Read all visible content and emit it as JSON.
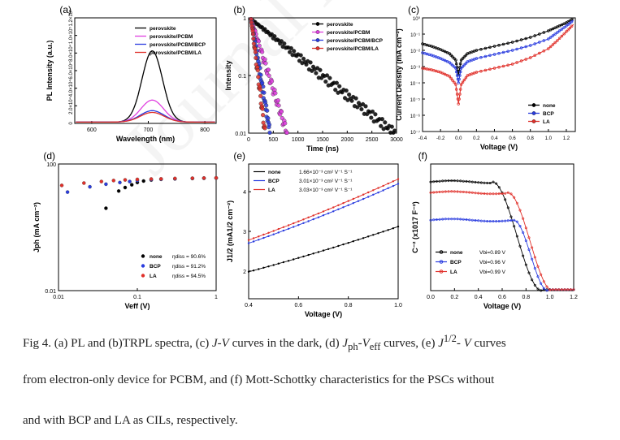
{
  "colors": {
    "none": "#000000",
    "pcbm": "#e040e0",
    "bcp": "#2a3cdf",
    "la": "#e0302a"
  },
  "watermark": "Journal Pre-proof",
  "panels": {
    "a": {
      "label": "(a)"
    },
    "b": {
      "label": "(b)"
    },
    "c": {
      "label": "(c)"
    },
    "d": {
      "label": "(d)"
    },
    "e": {
      "label": "(e)"
    },
    "f": {
      "label": "(f)"
    }
  },
  "caption": {
    "l1a": "Fig 4. (a) PL and (b)TRPL spectra, (c) ",
    "l1b": "J",
    "l1c": "-",
    "l1d": "V",
    "l1e": " curves in the dark, (d) ",
    "l1f": "J",
    "l1g": "ph",
    "l1h": "-",
    "l1i": "V",
    "l1j": "eff",
    "l1k": " curves, (e) ",
    "l1l": "J",
    "l1m": "1/2",
    "l1n": "- ",
    "l1o": "V",
    "l1p": " curves",
    "l2": "from electron-only device for PCBM, and (f) Mott-Schottky characteristics for the PSCs without",
    "l3": "and with BCP and LA as CILs, respectively."
  },
  "chart_data": [
    {
      "id": "a",
      "type": "line",
      "title": "",
      "xlabel": "Wavelength (nm)",
      "ylabel": "PL Intensity (a.u.)",
      "xlim": [
        570,
        820
      ],
      "ylim": [
        0,
        120000
      ],
      "xticks": [
        600,
        700,
        800
      ],
      "xticklabels": [
        "600",
        "700",
        "800"
      ],
      "yticks": [
        0,
        20000,
        40000,
        60000,
        80000,
        100000,
        120000
      ],
      "yticklabels": [
        "0",
        "2.0×10⁴",
        "4.0×10⁴",
        "6.0×10⁴",
        "8.0×10⁴",
        "1.0×10⁵",
        "1.2×10⁵"
      ],
      "series": [
        {
          "name": "perovskite",
          "color": "#000000",
          "peak": 707,
          "amp": 81000,
          "width": 18
        },
        {
          "name": "perovskite/PCBM",
          "color": "#e040e0",
          "peak": 707,
          "amp": 25000,
          "width": 20
        },
        {
          "name": "perovskite/PCBM/BCP",
          "color": "#2a3cdf",
          "peak": 707,
          "amp": 13000,
          "width": 21
        },
        {
          "name": "perovskite/PCBM/LA",
          "color": "#e0302a",
          "peak": 707,
          "amp": 11000,
          "width": 21
        }
      ]
    },
    {
      "id": "b",
      "type": "scatter",
      "title": "",
      "xlabel": "Time (ns)",
      "ylabel": "Intensity",
      "xlim": [
        0,
        3000
      ],
      "ylim": [
        0.01,
        1
      ],
      "yscale": "log",
      "xticks": [
        0,
        500,
        1000,
        1500,
        2000,
        2500,
        3000
      ],
      "xticklabels": [
        "0",
        "500",
        "1000",
        "1500",
        "2000",
        "2500",
        "3000"
      ],
      "yticks": [
        0.01,
        0.1,
        1
      ],
      "yticklabels": [
        "0.01",
        "0.1",
        "1"
      ],
      "series": [
        {
          "name": "perovskite",
          "color": "#000000",
          "tau": 640,
          "start": 50,
          "step": 28,
          "end": 2980
        },
        {
          "name": "perovskite/PCBM",
          "color": "#e040e0",
          "tau": 160,
          "start": 50,
          "step": 14,
          "end": 780
        },
        {
          "name": "perovskite/PCBM/BCP",
          "color": "#2a3cdf",
          "tau": 85,
          "start": 50,
          "step": 9,
          "end": 430
        },
        {
          "name": "perovskite/PCBM/LA",
          "color": "#e0302a",
          "tau": 62,
          "start": 50,
          "step": 8,
          "end": 330
        }
      ]
    },
    {
      "id": "c",
      "type": "line",
      "title": "",
      "xlabel": "Voltage (V)",
      "ylabel": "Current Density (mA cm⁻²)",
      "xlim": [
        -0.4,
        1.3
      ],
      "ylim": [
        -7,
        0
      ],
      "yscale": "log",
      "xticks": [
        -0.4,
        -0.2,
        0.0,
        0.2,
        0.4,
        0.6,
        0.8,
        1.0,
        1.2
      ],
      "xticklabels": [
        "-0.4",
        "-0.2",
        "0.0",
        "0.2",
        "0.4",
        "0.6",
        "0.8",
        "1.0",
        "1.2"
      ],
      "yticks": [
        -7,
        -6,
        -5,
        -4,
        -3,
        -2,
        -1,
        0
      ],
      "yticklabels": [
        "10⁻⁷",
        "10⁻⁶",
        "10⁻⁵",
        "10⁻⁴",
        "10⁻³",
        "10⁻²",
        "10⁻¹",
        "10⁰"
      ],
      "series": [
        {
          "name": "none",
          "color": "#000000",
          "points": [
            [
              -0.4,
              -1.6
            ],
            [
              -0.3,
              -1.75
            ],
            [
              -0.2,
              -1.95
            ],
            [
              -0.1,
              -2.2
            ],
            [
              -0.03,
              -2.6
            ],
            [
              0.0,
              -3.5
            ],
            [
              0.03,
              -2.6
            ],
            [
              0.1,
              -2.2
            ],
            [
              0.2,
              -2.0
            ],
            [
              0.4,
              -1.75
            ],
            [
              0.6,
              -1.5
            ],
            [
              0.8,
              -1.2
            ],
            [
              1.0,
              -0.8
            ],
            [
              1.1,
              -0.55
            ],
            [
              1.2,
              -0.3
            ],
            [
              1.28,
              -0.05
            ]
          ]
        },
        {
          "name": "BCP",
          "color": "#2a3cdf",
          "points": [
            [
              -0.4,
              -2.15
            ],
            [
              -0.3,
              -2.3
            ],
            [
              -0.2,
              -2.5
            ],
            [
              -0.1,
              -2.75
            ],
            [
              -0.03,
              -3.1
            ],
            [
              0.0,
              -4.0
            ],
            [
              0.03,
              -3.1
            ],
            [
              0.1,
              -2.7
            ],
            [
              0.2,
              -2.5
            ],
            [
              0.4,
              -2.25
            ],
            [
              0.6,
              -2.0
            ],
            [
              0.8,
              -1.7
            ],
            [
              1.0,
              -1.3
            ],
            [
              1.1,
              -0.9
            ],
            [
              1.2,
              -0.5
            ],
            [
              1.28,
              -0.15
            ]
          ]
        },
        {
          "name": "LA",
          "color": "#e0302a",
          "points": [
            [
              -0.4,
              -3.1
            ],
            [
              -0.3,
              -3.2
            ],
            [
              -0.2,
              -3.35
            ],
            [
              -0.1,
              -3.6
            ],
            [
              -0.03,
              -4.1
            ],
            [
              0.0,
              -5.3
            ],
            [
              0.03,
              -4.1
            ],
            [
              0.1,
              -3.55
            ],
            [
              0.2,
              -3.35
            ],
            [
              0.4,
              -3.1
            ],
            [
              0.6,
              -2.85
            ],
            [
              0.8,
              -2.45
            ],
            [
              1.0,
              -1.9
            ],
            [
              1.1,
              -1.4
            ],
            [
              1.2,
              -0.85
            ],
            [
              1.28,
              -0.4
            ]
          ]
        }
      ]
    },
    {
      "id": "d",
      "type": "scatter",
      "title": "",
      "xlabel": "Veff (V)",
      "ylabel": "Jph (mA cm⁻²)",
      "xlim": [
        0.01,
        1
      ],
      "ylim": [
        0.01,
        100
      ],
      "xscale": "log",
      "yscale": "log",
      "xticks": [
        0.01,
        0.1,
        1
      ],
      "xticklabels": [
        "0.01",
        "0.1",
        "1"
      ],
      "yticks": [
        0.01,
        100
      ],
      "yticklabels": [
        "0.01",
        "100"
      ],
      "annotations": [
        "ηdiss = 90.6%",
        "ηdiss = 91.2%",
        "ηdiss = 94.5%"
      ],
      "series": [
        {
          "name": "none",
          "color": "#000000",
          "points": [
            [
              0.04,
              4.0
            ],
            [
              0.058,
              14
            ],
            [
              0.07,
              18
            ],
            [
              0.085,
              22
            ],
            [
              0.1,
              26
            ],
            [
              0.12,
              29
            ],
            [
              0.15,
              31
            ],
            [
              0.2,
              33
            ],
            [
              0.3,
              34
            ],
            [
              0.5,
              35
            ],
            [
              0.7,
              35.5
            ],
            [
              1.0,
              36
            ]
          ]
        },
        {
          "name": "BCP",
          "color": "#2a3cdf",
          "points": [
            [
              0.013,
              13
            ],
            [
              0.025,
              19
            ],
            [
              0.04,
              23
            ],
            [
              0.06,
              26
            ],
            [
              0.08,
              28
            ],
            [
              0.1,
              30
            ],
            [
              0.15,
              32
            ],
            [
              0.2,
              33
            ],
            [
              0.3,
              34
            ],
            [
              0.5,
              35
            ],
            [
              0.7,
              35.5
            ],
            [
              1.0,
              36
            ]
          ]
        },
        {
          "name": "LA",
          "color": "#e0302a",
          "points": [
            [
              0.011,
              21
            ],
            [
              0.021,
              25
            ],
            [
              0.035,
              28
            ],
            [
              0.05,
              30
            ],
            [
              0.07,
              31.5
            ],
            [
              0.1,
              32.5
            ],
            [
              0.15,
              33.5
            ],
            [
              0.2,
              34
            ],
            [
              0.3,
              35
            ],
            [
              0.5,
              35.5
            ],
            [
              0.7,
              36
            ],
            [
              1.0,
              36.5
            ]
          ]
        }
      ]
    },
    {
      "id": "e",
      "type": "line",
      "title": "",
      "xlabel": "Voltage (V)",
      "ylabel": "J1/2 (mA1/2 cm⁻²)",
      "xlim": [
        0.4,
        1.0
      ],
      "ylim": [
        1.3,
        4.7
      ],
      "xticks": [
        0.4,
        0.6,
        0.8,
        1.0
      ],
      "xticklabels": [
        "0.4",
        "0.6",
        "0.8",
        "1.0"
      ],
      "yticks": [
        2,
        3,
        4
      ],
      "yticklabels": [
        "2",
        "3",
        "4"
      ],
      "series": [
        {
          "name": "none",
          "mobility": "1.66×10⁻³ cm² V⁻¹ S⁻¹",
          "color": "#000000",
          "y0": 1.98,
          "y1": 3.12
        },
        {
          "name": "BCP",
          "mobility": "3.01×10⁻³ cm² V⁻¹ S⁻¹",
          "color": "#2a3cdf",
          "y0": 2.7,
          "y1": 4.2
        },
        {
          "name": "LA",
          "mobility": "3.03×10⁻³ cm² V⁻¹ S⁻¹",
          "color": "#e0302a",
          "y0": 2.78,
          "y1": 4.32
        }
      ]
    },
    {
      "id": "f",
      "type": "line",
      "title": "",
      "xlabel": "Voltage (V)",
      "ylabel": "C⁻² (x1017 F⁻²)",
      "xlim": [
        0.0,
        1.2
      ],
      "ylim": [
        0,
        5.3
      ],
      "xticks": [
        0.0,
        0.2,
        0.4,
        0.6,
        0.8,
        1.0,
        1.2
      ],
      "xticklabels": [
        "0.0",
        "0.2",
        "0.4",
        "0.6",
        "0.8",
        "1.0",
        "1.2"
      ],
      "series": [
        {
          "name": "none",
          "vbi": "Vbi=0.89 V",
          "color": "#000000",
          "plateau": 4.55,
          "knee": 0.52,
          "end": 0.93
        },
        {
          "name": "BCP",
          "vbi": "Vbi=0.96 V",
          "color": "#2a3cdf",
          "plateau": 2.95,
          "knee": 0.7,
          "end": 0.98
        },
        {
          "name": "LA",
          "vbi": "Vbi=0.99 V",
          "color": "#e0302a",
          "plateau": 4.1,
          "knee": 0.65,
          "end": 1.02
        }
      ]
    }
  ]
}
